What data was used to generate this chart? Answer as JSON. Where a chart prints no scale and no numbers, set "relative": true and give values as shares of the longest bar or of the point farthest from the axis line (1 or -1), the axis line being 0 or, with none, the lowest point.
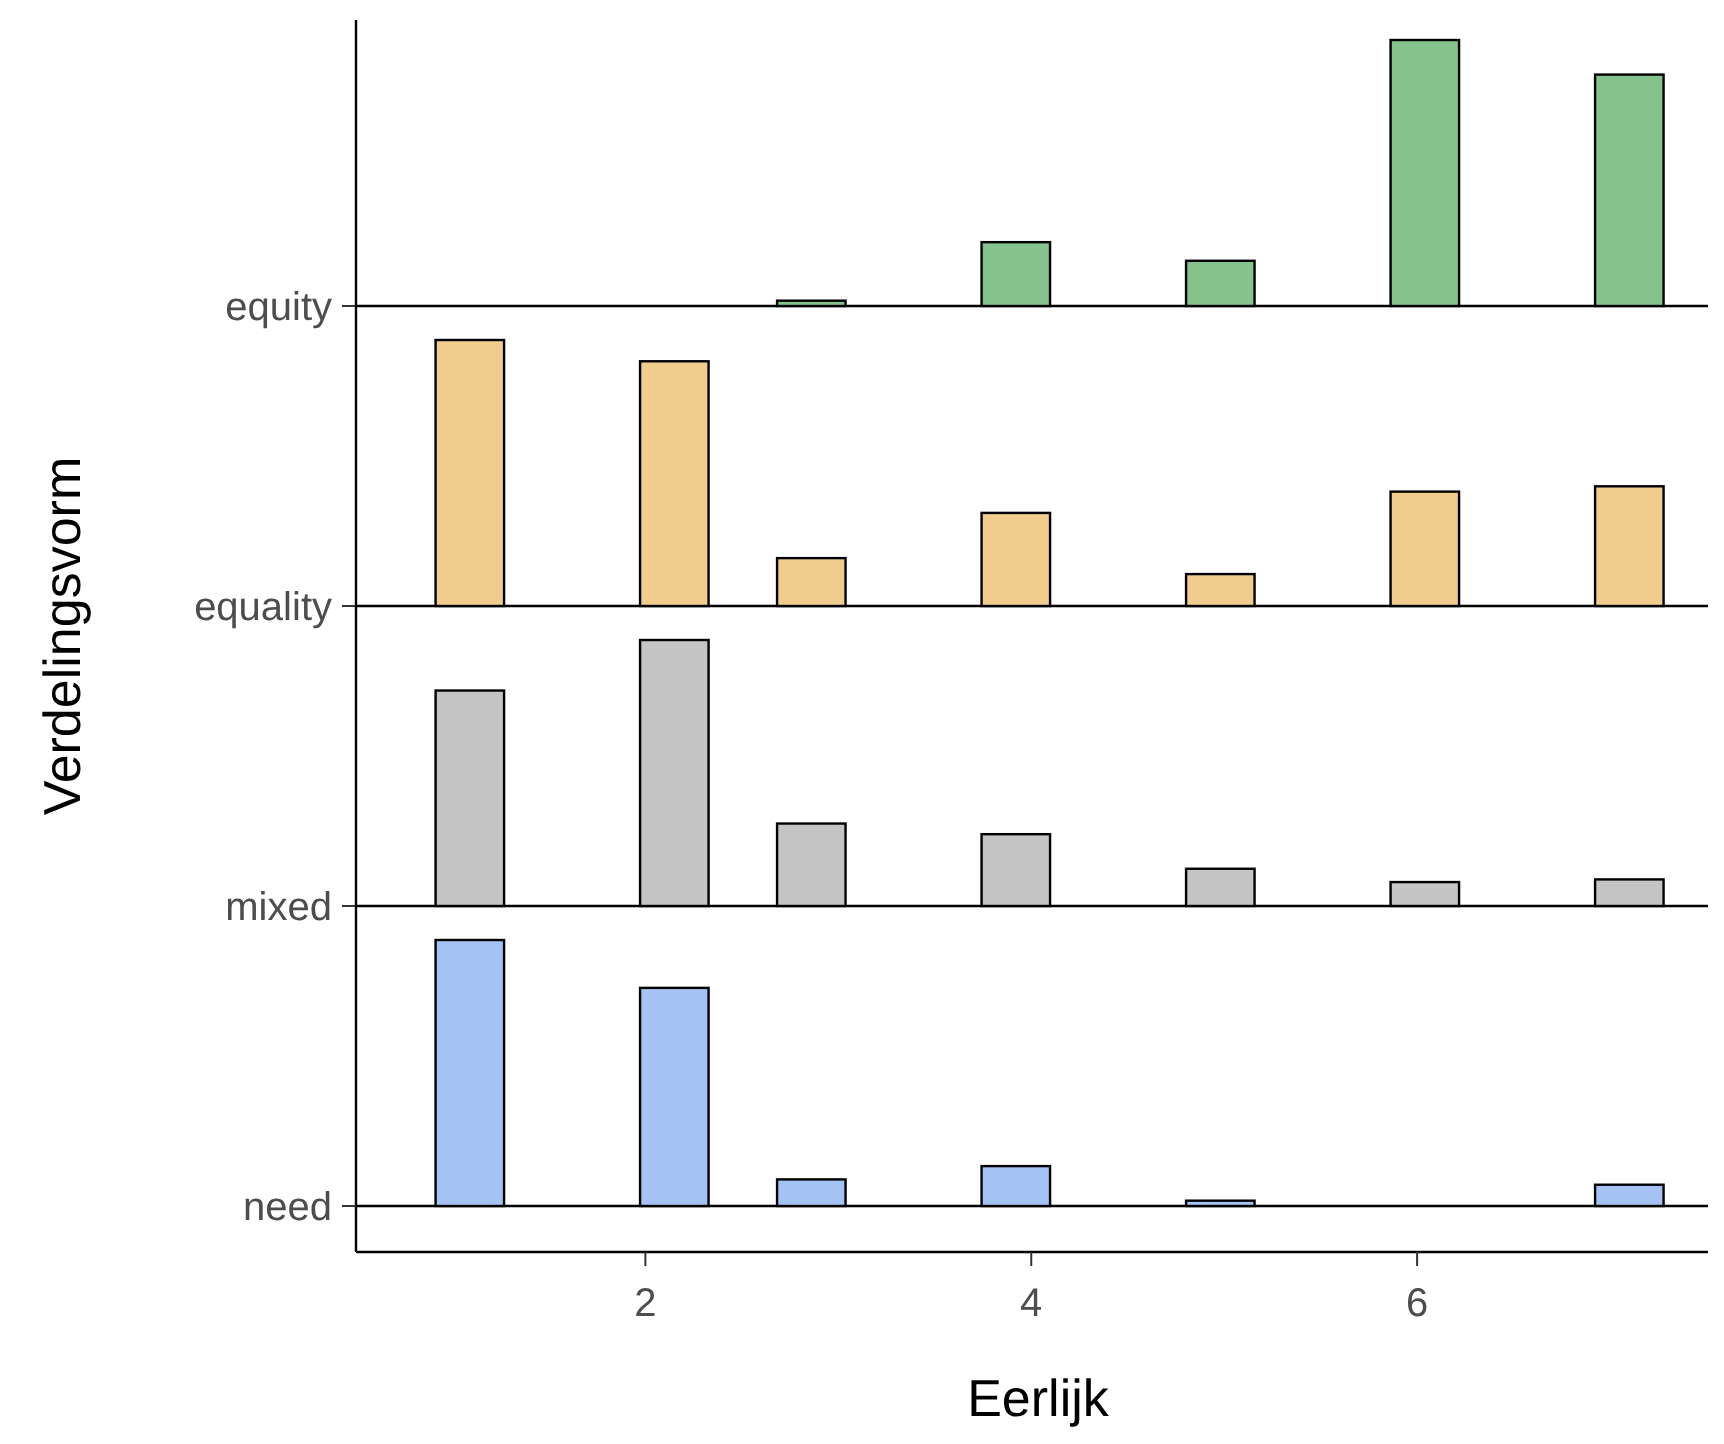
{
  "chart_data": [
    {
      "type": "bar",
      "title": "equity",
      "color": "#86c28b",
      "relative": true,
      "xlim": [
        0.5,
        7.57
      ],
      "xticks": [
        2,
        4,
        6
      ],
      "tick_labels": false,
      "x": [
        1.09,
        2.15,
        2.86,
        3.92,
        4.98,
        6.04,
        7.1
      ],
      "values": [
        0,
        0,
        0.02,
        0.24,
        0.17,
        1,
        0.87
      ]
    },
    {
      "type": "bar",
      "title": "equality",
      "color": "#f0cd8c",
      "relative": true,
      "xlim": [
        0.5,
        7.57
      ],
      "xticks": [
        2,
        4,
        6
      ],
      "tick_labels": false,
      "x": [
        1.09,
        2.15,
        2.86,
        3.92,
        4.98,
        6.04,
        7.1
      ],
      "values": [
        1,
        0.92,
        0.18,
        0.35,
        0.12,
        0.43,
        0.45
      ]
    },
    {
      "type": "bar",
      "title": "mixed",
      "color": "#c4c4c4",
      "relative": true,
      "xlim": [
        0.5,
        7.57
      ],
      "xticks": [
        2,
        4,
        6
      ],
      "tick_labels": false,
      "x": [
        1.09,
        2.15,
        2.86,
        3.92,
        4.98,
        6.04,
        7.1
      ],
      "values": [
        0.81,
        1,
        0.31,
        0.27,
        0.14,
        0.09,
        0.1
      ]
    },
    {
      "type": "bar",
      "title": "need",
      "xlabel": "Eerlijk",
      "ylabel": "Verdelingsvorm",
      "color": "#a4c2f4",
      "relative": true,
      "xlim": [
        0.5,
        7.57
      ],
      "xticks": [
        2,
        4,
        6
      ],
      "tick_labels": "x",
      "x": [
        1.09,
        2.15,
        2.86,
        3.92,
        4.98,
        6.04,
        7.1
      ],
      "values": [
        1,
        0.82,
        0.1,
        0.15,
        0.02,
        0,
        0.08
      ]
    }
  ]
}
